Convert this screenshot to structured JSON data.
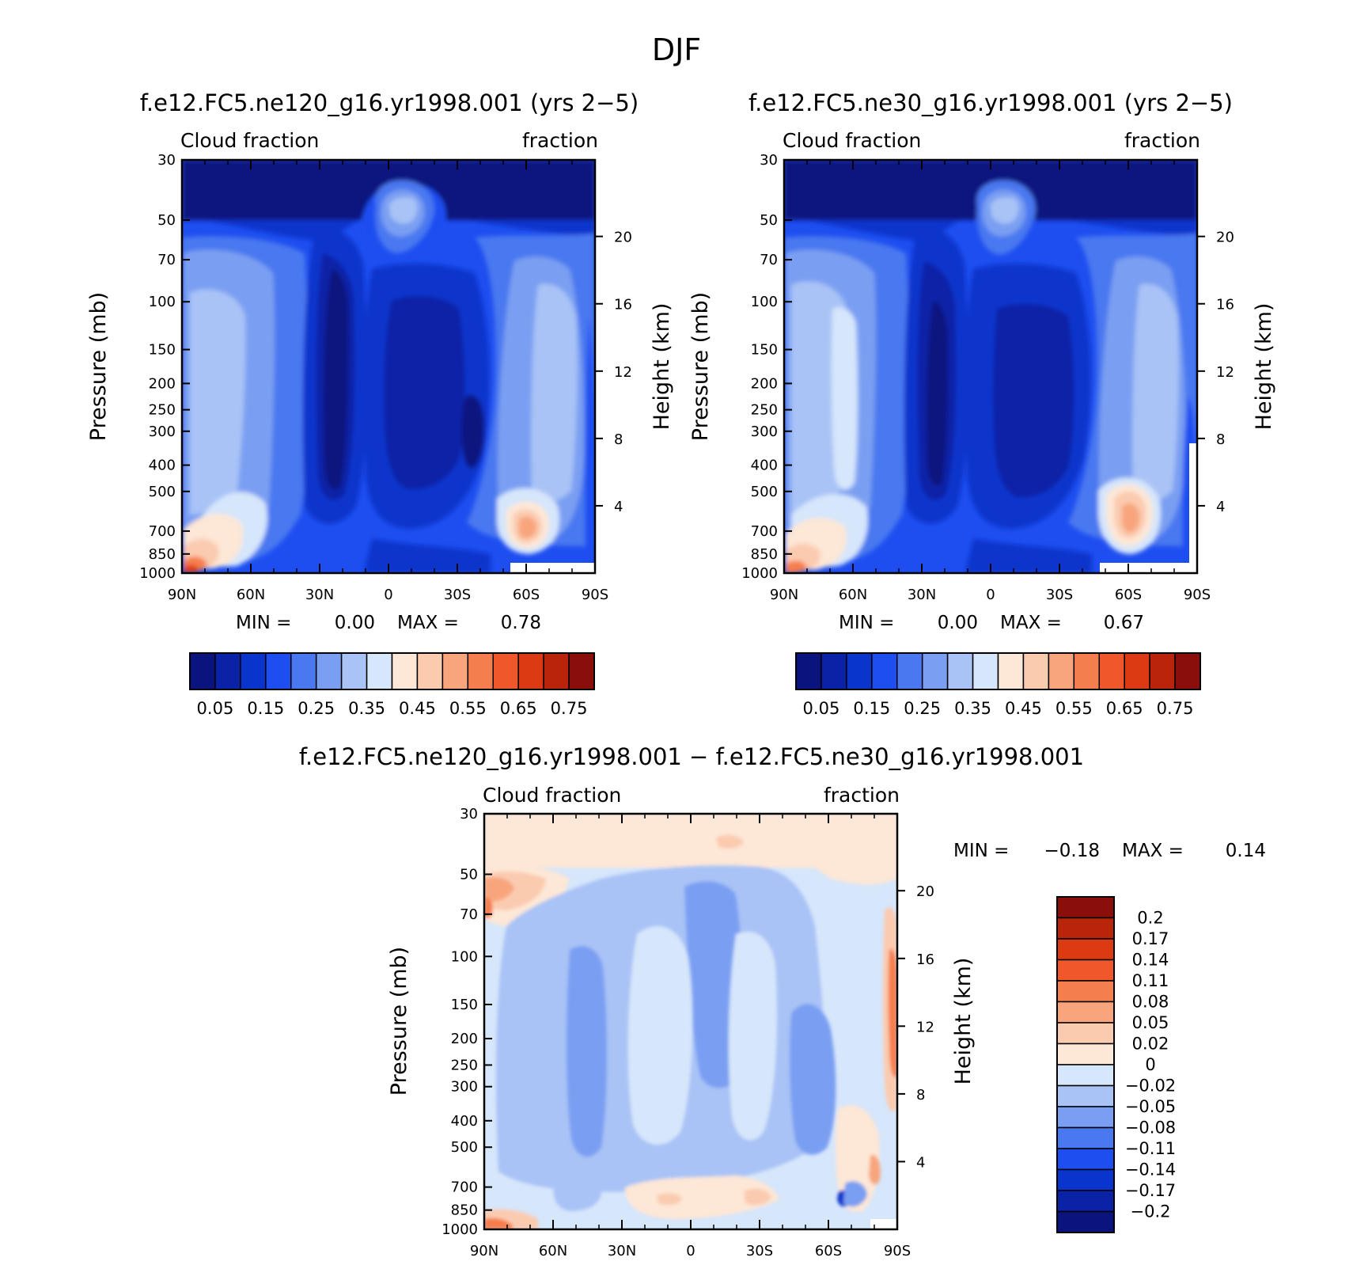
{
  "figure": {
    "season": "DJF"
  },
  "legend_labels": {
    "abs": [
      "0.05",
      "0.15",
      "0.25",
      "0.35",
      "0.45",
      "0.55",
      "0.65",
      "0.75"
    ],
    "diff": [
      "0.2",
      "0.17",
      "0.14",
      "0.11",
      "0.08",
      "0.05",
      "0.02",
      "0",
      "−0.02",
      "−0.05",
      "−0.08",
      "−0.11",
      "−0.14",
      "−0.17",
      "−0.2"
    ]
  },
  "colors": {
    "abs_scale": [
      "#0a147e",
      "#0a23a6",
      "#0a35cc",
      "#1e4ef0",
      "#4a78f0",
      "#7a9ff2",
      "#a9c3f6",
      "#d6e6fb",
      "#fde7d6",
      "#fbcbb0",
      "#f8a57d",
      "#f57e4e",
      "#f0572a",
      "#db3a12",
      "#b8250b",
      "#8a0f0a"
    ],
    "diff_scale": [
      "#8a0f0a",
      "#b8250b",
      "#db3a12",
      "#f0572a",
      "#f57e4e",
      "#f8a57d",
      "#fbcbb0",
      "#fde7d6",
      "#d6e6fb",
      "#a9c3f6",
      "#7a9ff2",
      "#4a78f0",
      "#1e4ef0",
      "#0a35cc",
      "#0a23a6",
      "#0a147e"
    ]
  },
  "chart_data": [
    {
      "type": "heatmap",
      "title": "f.e12.FC5.ne120_g16.yr1998.001 (yrs 2−5)",
      "left_label": "Cloud fraction",
      "right_label": "fraction",
      "xlabel": "",
      "ylabel": "Pressure (mb)",
      "ylabel_right": "Height (km)",
      "x_ticks": [
        "90N",
        "60N",
        "30N",
        "0",
        "30S",
        "60S",
        "90S"
      ],
      "x_range": [
        -90,
        90
      ],
      "y_ticks": [
        "30",
        "50",
        "70",
        "100",
        "150",
        "200",
        "250",
        "300",
        "400",
        "500",
        "700",
        "850",
        "1000"
      ],
      "y_range": [
        30,
        1000
      ],
      "height_ticks": [
        "20",
        "16",
        "12",
        "8",
        "4"
      ],
      "min_label": "MIN =",
      "min_value": "0.00",
      "max_label": "MAX =",
      "max_value": "0.78",
      "levels": [
        0.05,
        0.1,
        0.15,
        0.2,
        0.25,
        0.3,
        0.35,
        0.4,
        0.45,
        0.5,
        0.55,
        0.6,
        0.65,
        0.7,
        0.75
      ]
    },
    {
      "type": "heatmap",
      "title": "f.e12.FC5.ne30_g16.yr1998.001 (yrs 2−5)",
      "left_label": "Cloud fraction",
      "right_label": "fraction",
      "xlabel": "",
      "ylabel": "Pressure (mb)",
      "ylabel_right": "Height (km)",
      "x_ticks": [
        "90N",
        "60N",
        "30N",
        "0",
        "30S",
        "60S",
        "90S"
      ],
      "x_range": [
        -90,
        90
      ],
      "y_ticks": [
        "30",
        "50",
        "70",
        "100",
        "150",
        "200",
        "250",
        "300",
        "400",
        "500",
        "700",
        "850",
        "1000"
      ],
      "y_range": [
        30,
        1000
      ],
      "height_ticks": [
        "20",
        "16",
        "12",
        "8",
        "4"
      ],
      "min_label": "MIN =",
      "min_value": "0.00",
      "max_label": "MAX =",
      "max_value": "0.67",
      "levels": [
        0.05,
        0.1,
        0.15,
        0.2,
        0.25,
        0.3,
        0.35,
        0.4,
        0.45,
        0.5,
        0.55,
        0.6,
        0.65,
        0.7,
        0.75
      ]
    },
    {
      "type": "heatmap",
      "title": "f.e12.FC5.ne120_g16.yr1998.001 − f.e12.FC5.ne30_g16.yr1998.001",
      "left_label": "Cloud fraction",
      "right_label": "fraction",
      "xlabel": "",
      "ylabel": "Pressure (mb)",
      "ylabel_right": "Height (km)",
      "x_ticks": [
        "90N",
        "60N",
        "30N",
        "0",
        "30S",
        "60S",
        "90S"
      ],
      "x_range": [
        -90,
        90
      ],
      "y_ticks": [
        "30",
        "50",
        "70",
        "100",
        "150",
        "200",
        "250",
        "300",
        "400",
        "500",
        "700",
        "850",
        "1000"
      ],
      "y_range": [
        30,
        1000
      ],
      "height_ticks": [
        "20",
        "16",
        "12",
        "8",
        "4"
      ],
      "min_label": "MIN =",
      "min_value": "−0.18",
      "max_label": "MAX =",
      "max_value": "0.14",
      "levels": [
        -0.2,
        -0.17,
        -0.14,
        -0.11,
        -0.08,
        -0.05,
        -0.02,
        0,
        0.02,
        0.05,
        0.08,
        0.11,
        0.14,
        0.17,
        0.2
      ]
    }
  ]
}
